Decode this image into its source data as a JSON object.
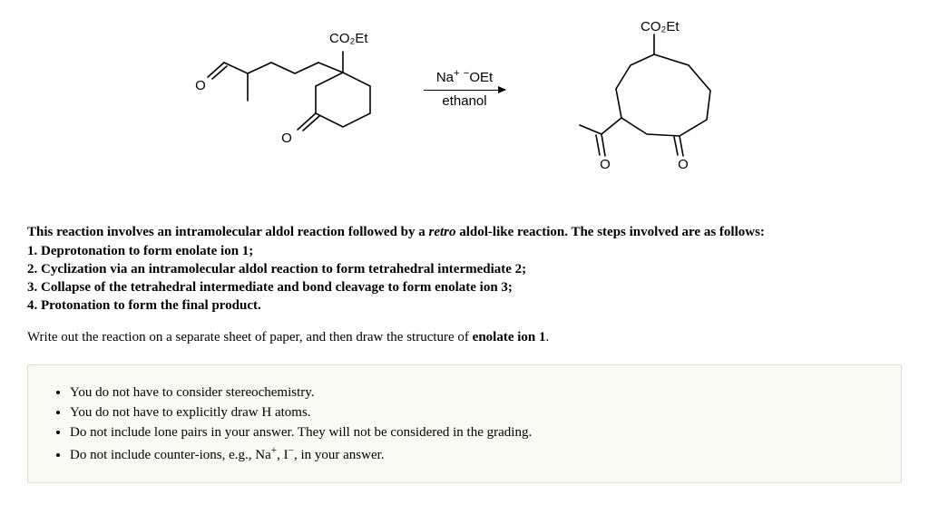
{
  "figure": {
    "label_left": "CO₂Et",
    "label_right": "CO₂Et",
    "reagent_top_html": "Na<sup>+</sup> <sup>−</sup>OEt",
    "reagent_bottom": "ethanol",
    "oxygen": "O"
  },
  "intro_html": "This reaction involves an intramolecular aldol reaction followed by a <em>retro</em> aldol-like reaction. The steps involved are as follows:<br>1. Deprotonation to form enolate ion 1;<br>2. Cyclization via an intramolecular aldol reaction to form tetrahedral intermediate 2;<br>3. Collapse of the tetrahedral intermediate and bond cleavage to form enolate ion 3;<br>4. Protonation to form the final product.",
  "prompt_html": "Write out the reaction on a separate sheet of paper, and then draw the structure of <strong>enolate ion 1</strong>.",
  "hints": [
    "You do not have to consider stereochemistry.",
    "You do not have to explicitly draw H atoms.",
    "Do not include lone pairs in your answer. They will not be considered in the grading.",
    "Do not include counter-ions, e.g., Na<sup>+</sup>, I<sup>−</sup>, in your answer."
  ],
  "style": {
    "stroke": "#000000",
    "stroke_width": 1.6,
    "hint_bg": "#f9faf3",
    "hint_border": "#dbe2c8"
  }
}
